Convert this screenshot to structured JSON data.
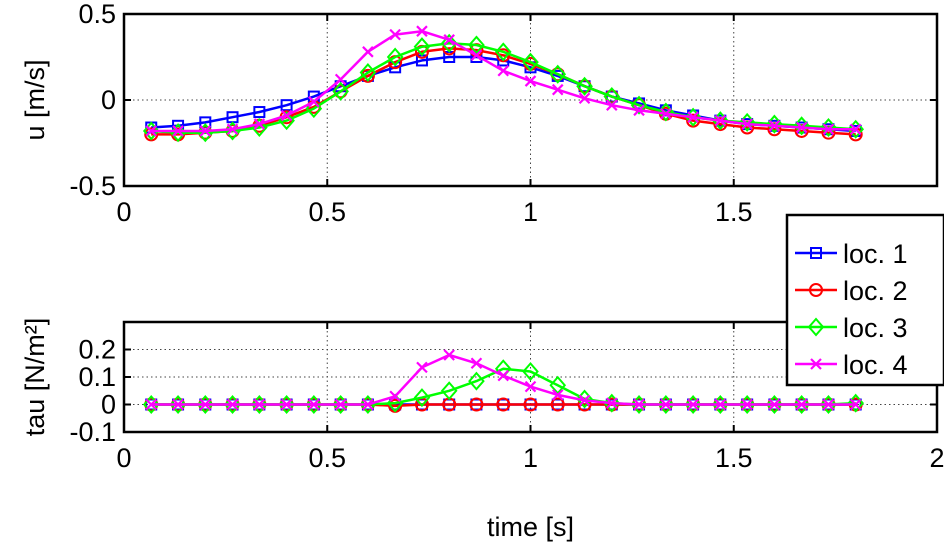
{
  "chart_data": [
    {
      "type": "line",
      "ylabel": "u  [m/s]",
      "xlim": [
        0,
        2
      ],
      "ylim": [
        -0.5,
        0.5
      ],
      "x_ticks": [
        {
          "v": 0,
          "label": "0"
        },
        {
          "v": 0.5,
          "label": "0.5"
        },
        {
          "v": 1,
          "label": "1"
        },
        {
          "v": 1.5,
          "label": "1.5"
        }
      ],
      "y_ticks": [
        {
          "v": -0.5,
          "label": "-0.5"
        },
        {
          "v": 0,
          "label": "0"
        },
        {
          "v": 0.5,
          "label": "0.5"
        }
      ],
      "grid": true,
      "x": [
        0.067,
        0.133,
        0.2,
        0.267,
        0.333,
        0.4,
        0.467,
        0.533,
        0.6,
        0.667,
        0.733,
        0.8,
        0.867,
        0.933,
        1.0,
        1.067,
        1.133,
        1.2,
        1.267,
        1.333,
        1.4,
        1.467,
        1.533,
        1.6,
        1.667,
        1.733,
        1.8
      ],
      "series": [
        {
          "name": "loc. 1",
          "color": "#0000ff",
          "marker": "square",
          "values": [
            -0.16,
            -0.15,
            -0.13,
            -0.1,
            -0.07,
            -0.03,
            0.02,
            0.08,
            0.14,
            0.19,
            0.23,
            0.25,
            0.25,
            0.23,
            0.19,
            0.14,
            0.08,
            0.02,
            -0.02,
            -0.06,
            -0.09,
            -0.12,
            -0.14,
            -0.15,
            -0.16,
            -0.17,
            -0.18
          ]
        },
        {
          "name": "loc. 2",
          "color": "#ff0000",
          "marker": "circle",
          "values": [
            -0.2,
            -0.2,
            -0.19,
            -0.18,
            -0.15,
            -0.1,
            -0.04,
            0.05,
            0.14,
            0.22,
            0.28,
            0.3,
            0.29,
            0.26,
            0.21,
            0.15,
            0.08,
            0.02,
            -0.03,
            -0.08,
            -0.12,
            -0.14,
            -0.16,
            -0.17,
            -0.18,
            -0.19,
            -0.2
          ]
        },
        {
          "name": "loc. 3",
          "color": "#00ff00",
          "marker": "diamond",
          "values": [
            -0.18,
            -0.19,
            -0.19,
            -0.18,
            -0.16,
            -0.12,
            -0.05,
            0.05,
            0.16,
            0.25,
            0.31,
            0.33,
            0.32,
            0.28,
            0.22,
            0.15,
            0.08,
            0.02,
            -0.03,
            -0.07,
            -0.1,
            -0.12,
            -0.13,
            -0.14,
            -0.15,
            -0.16,
            -0.17
          ]
        },
        {
          "name": "loc. 4",
          "color": "#ff00ff",
          "marker": "x",
          "values": [
            -0.18,
            -0.18,
            -0.18,
            -0.17,
            -0.14,
            -0.09,
            -0.01,
            0.12,
            0.28,
            0.38,
            0.4,
            0.35,
            0.26,
            0.17,
            0.11,
            0.06,
            0.01,
            -0.03,
            -0.06,
            -0.08,
            -0.1,
            -0.12,
            -0.14,
            -0.15,
            -0.16,
            -0.17,
            -0.17
          ]
        }
      ]
    },
    {
      "type": "line",
      "xlabel": "time  [s]",
      "ylabel": "tau  [N/m²]",
      "xlim": [
        0,
        2
      ],
      "ylim": [
        -0.1,
        0.3
      ],
      "x_ticks": [
        {
          "v": 0,
          "label": "0"
        },
        {
          "v": 0.5,
          "label": "0.5"
        },
        {
          "v": 1,
          "label": "1"
        },
        {
          "v": 1.5,
          "label": "1.5"
        },
        {
          "v": 2,
          "label": "2"
        }
      ],
      "y_ticks": [
        {
          "v": -0.1,
          "label": "-0.1"
        },
        {
          "v": 0,
          "label": "0"
        },
        {
          "v": 0.1,
          "label": "0.1"
        },
        {
          "v": 0.2,
          "label": "0.2"
        }
      ],
      "grid": true,
      "x": [
        0.067,
        0.133,
        0.2,
        0.267,
        0.333,
        0.4,
        0.467,
        0.533,
        0.6,
        0.667,
        0.733,
        0.8,
        0.867,
        0.933,
        1.0,
        1.067,
        1.133,
        1.2,
        1.267,
        1.333,
        1.4,
        1.467,
        1.533,
        1.6,
        1.667,
        1.733,
        1.8
      ],
      "series": [
        {
          "name": "loc. 1",
          "color": "#0000ff",
          "marker": "square",
          "values": [
            0,
            0,
            0,
            0,
            0,
            0,
            0,
            0,
            0,
            0,
            0,
            0,
            0,
            0,
            0,
            0,
            0,
            0,
            0,
            0,
            0,
            0,
            0,
            0,
            0,
            0,
            0
          ]
        },
        {
          "name": "loc. 2",
          "color": "#ff0000",
          "marker": "circle",
          "values": [
            0,
            0,
            0,
            0,
            0,
            0,
            0,
            0,
            0,
            -0.005,
            0,
            0,
            0,
            0,
            0,
            0,
            0,
            0,
            0,
            0,
            0,
            0,
            0,
            0,
            0,
            0,
            0
          ]
        },
        {
          "name": "loc. 3",
          "color": "#00ff00",
          "marker": "diamond",
          "values": [
            0,
            0,
            0,
            0,
            0,
            0,
            0,
            0,
            0,
            0.005,
            0.025,
            0.05,
            0.085,
            0.13,
            0.12,
            0.07,
            0.02,
            0.005,
            0,
            0,
            0,
            0,
            0,
            0,
            0,
            0,
            0.005
          ]
        },
        {
          "name": "loc. 4",
          "color": "#ff00ff",
          "marker": "x",
          "values": [
            0,
            0,
            0,
            0,
            0,
            0,
            0,
            0,
            0,
            0.03,
            0.135,
            0.18,
            0.15,
            0.105,
            0.065,
            0.035,
            0.015,
            0.005,
            0,
            0,
            0,
            0,
            0,
            0,
            0,
            0,
            0
          ]
        }
      ]
    }
  ],
  "legend": {
    "placement": "right",
    "entries": [
      "loc. 1",
      "loc. 2",
      "loc. 3",
      "loc. 4"
    ]
  }
}
